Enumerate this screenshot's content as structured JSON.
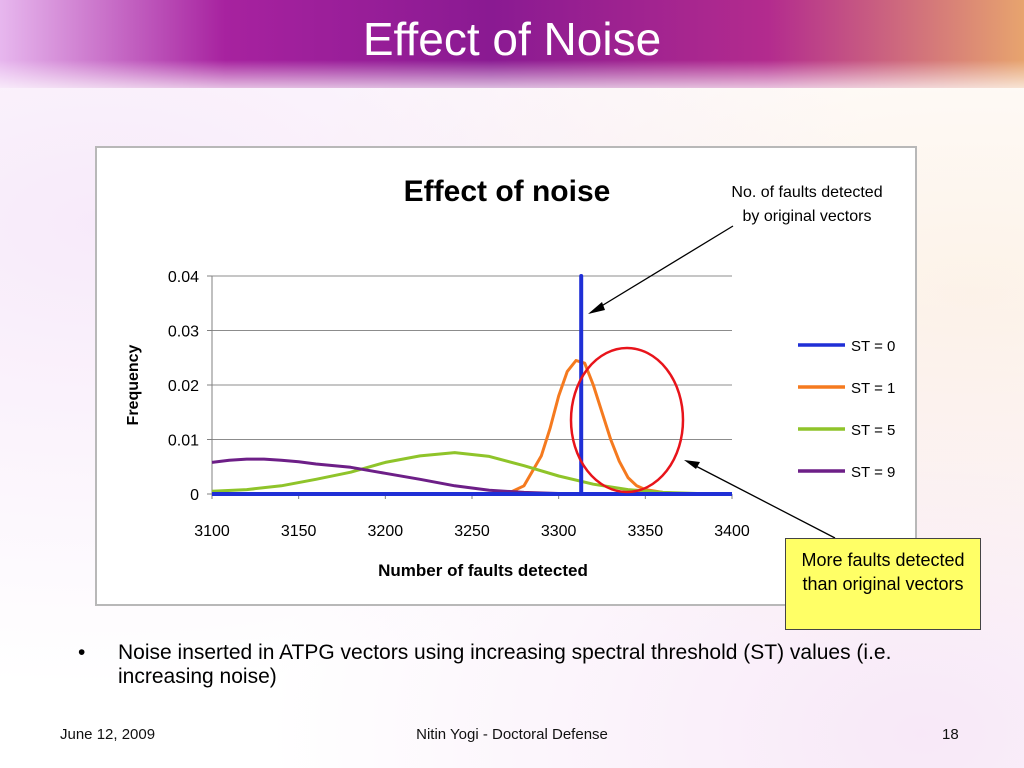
{
  "slide": {
    "title": "Effect of Noise",
    "bullet": "Noise inserted in ATPG vectors using increasing spectral threshold (ST) values (i.e. increasing noise)",
    "footer_date": "June 12, 2009",
    "footer_center": "Nitin Yogi - Doctoral Defense",
    "page_number": "18"
  },
  "annotations": {
    "top_callout": "No. of faults detected by original vectors",
    "box_callout": "More faults detected than original vectors",
    "circle_color": "#e8141b"
  },
  "chart_data": {
    "type": "line",
    "title": "Effect of noise",
    "xlabel": "Number of faults detected",
    "ylabel": "Frequency",
    "xlim": [
      3100,
      3400
    ],
    "ylim": [
      0,
      0.04
    ],
    "x_ticks": [
      "3100",
      "3150",
      "3200",
      "3250",
      "3300",
      "3350",
      "3400"
    ],
    "y_ticks": [
      "0",
      "0.01",
      "0.02",
      "0.03",
      "0.04"
    ],
    "grid": "horizontal",
    "legend_position": "right",
    "series": [
      {
        "name": "ST = 0",
        "color": "#1f2fd6",
        "x": [
          3100,
          3313,
          3313,
          3313,
          3400
        ],
        "y": [
          0,
          0,
          0.04,
          0,
          0
        ]
      },
      {
        "name": "ST = 1",
        "color": "#f57a1f",
        "x": [
          3100,
          3270,
          3280,
          3290,
          3295,
          3300,
          3305,
          3310,
          3315,
          3320,
          3325,
          3330,
          3335,
          3340,
          3345,
          3350,
          3360,
          3370,
          3400
        ],
        "y": [
          0,
          0,
          0.0015,
          0.007,
          0.012,
          0.018,
          0.0225,
          0.0245,
          0.024,
          0.02,
          0.015,
          0.01,
          0.006,
          0.003,
          0.0015,
          0.0008,
          0.0003,
          0.0001,
          0
        ]
      },
      {
        "name": "ST = 5",
        "color": "#8fc42a",
        "x": [
          3100,
          3120,
          3140,
          3160,
          3180,
          3200,
          3220,
          3240,
          3260,
          3280,
          3300,
          3320,
          3340,
          3360,
          3380,
          3400
        ],
        "y": [
          0.0005,
          0.0008,
          0.0015,
          0.0027,
          0.004,
          0.0058,
          0.007,
          0.0076,
          0.0069,
          0.0052,
          0.0033,
          0.0018,
          0.0008,
          0.0003,
          0.0001,
          0
        ]
      },
      {
        "name": "ST = 9",
        "color": "#6d1f87",
        "x": [
          3100,
          3110,
          3120,
          3130,
          3140,
          3150,
          3160,
          3180,
          3200,
          3220,
          3240,
          3260,
          3280,
          3300,
          3320,
          3340,
          3360,
          3400
        ],
        "y": [
          0.0058,
          0.0062,
          0.0064,
          0.0064,
          0.0062,
          0.0059,
          0.0055,
          0.0049,
          0.0038,
          0.0027,
          0.0015,
          0.0007,
          0.0003,
          0.0001,
          0,
          0,
          0,
          0
        ]
      }
    ]
  }
}
